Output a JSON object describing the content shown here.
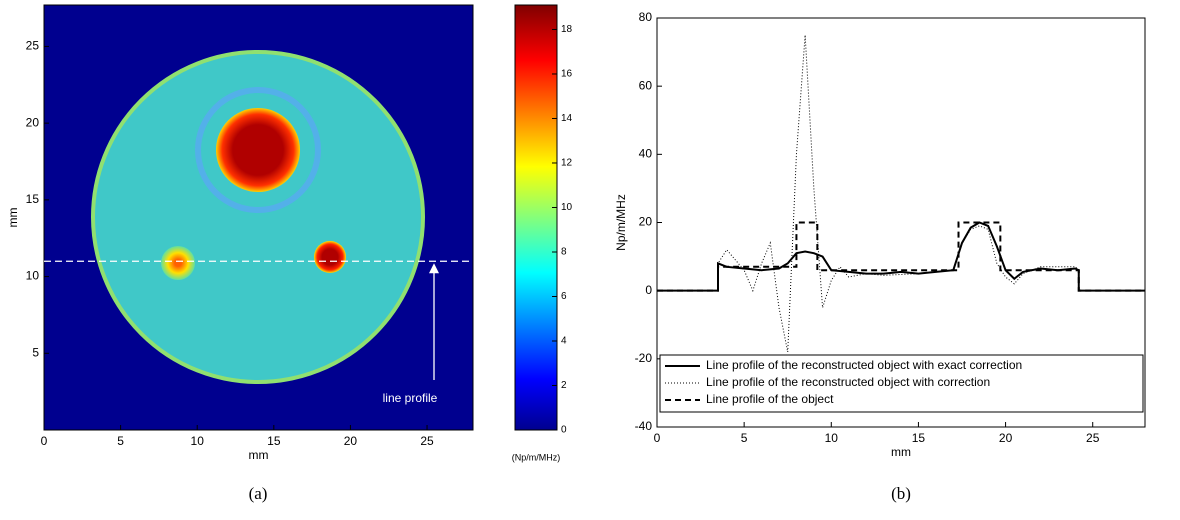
{
  "chart_data": [
    {
      "type": "image",
      "caption": "(a)",
      "xlabel": "mm",
      "ylabel": "mm",
      "xlim": [
        0,
        28
      ],
      "ylim": [
        0,
        27.7
      ],
      "xticks": [
        0,
        5,
        10,
        15,
        20,
        25
      ],
      "yticks": [
        5,
        10,
        15,
        20,
        25
      ],
      "colormap": "jet",
      "colorbar_label": "(Np/m/MHz)",
      "colorbar_lim": [
        0,
        19.1
      ],
      "colorbar_ticks": [
        0,
        2,
        4,
        6,
        8,
        10,
        12,
        14,
        16,
        18
      ],
      "profile_y": 11,
      "annotation": "line profile"
    },
    {
      "type": "line",
      "caption": "(b)",
      "xlabel": "mm",
      "ylabel": "Np/m/MHz",
      "xlim": [
        0,
        28
      ],
      "ylim": [
        -40,
        80
      ],
      "xticks": [
        0,
        5,
        10,
        15,
        20,
        25
      ],
      "yticks": [
        -40,
        -20,
        0,
        20,
        40,
        60,
        80
      ],
      "legend": "lower left",
      "series": [
        {
          "name": "Line profile of the reconstructed object with exact correction",
          "color": "#000000",
          "style": "solid",
          "x": [
            0,
            3.5,
            3.5,
            4,
            5,
            6,
            7,
            7.5,
            8,
            8.5,
            9,
            9.5,
            10,
            11,
            12,
            13,
            14,
            15,
            16,
            17,
            17.5,
            18,
            18.5,
            19,
            19.5,
            20,
            20.5,
            21,
            22,
            23,
            24,
            24.2,
            24.2,
            28
          ],
          "values": [
            0,
            0,
            8,
            7,
            6.5,
            6,
            6.5,
            8,
            11,
            11.5,
            11,
            10,
            6,
            5.5,
            5,
            5,
            5.5,
            5,
            5.5,
            6,
            14,
            18.5,
            20,
            19,
            13,
            6,
            3.5,
            5.5,
            6.5,
            6,
            6.5,
            6,
            0,
            0
          ]
        },
        {
          "name": "Line profile of the reconstructed object with correction",
          "color": "#000000",
          "style": "dotted",
          "x": [
            0,
            3.5,
            3.5,
            4,
            5,
            5.5,
            6,
            6.5,
            7,
            7.5,
            8,
            8.5,
            9,
            9.5,
            10,
            10.5,
            11,
            12,
            13,
            15,
            17,
            17.5,
            18,
            18.5,
            19,
            19.5,
            20,
            20.5,
            21,
            22,
            24,
            24.2,
            24.2,
            28
          ],
          "values": [
            0,
            0,
            8,
            12,
            6,
            0,
            8,
            14,
            -5,
            -18,
            40,
            75,
            30,
            -5,
            3,
            7,
            4,
            5,
            4.5,
            5,
            6,
            14,
            18,
            19,
            18,
            8,
            4,
            2,
            5,
            7,
            7,
            6,
            0,
            0
          ]
        },
        {
          "name": "Line profile of the object",
          "color": "#000000",
          "style": "dashed",
          "x": [
            0,
            3.5,
            3.5,
            8,
            8,
            9.2,
            9.2,
            17.3,
            17.3,
            19.7,
            19.7,
            24.2,
            24.2,
            28
          ],
          "values": [
            0,
            0,
            7,
            7,
            20,
            20,
            6,
            6,
            20,
            20,
            6,
            6,
            0,
            0
          ]
        }
      ]
    }
  ]
}
